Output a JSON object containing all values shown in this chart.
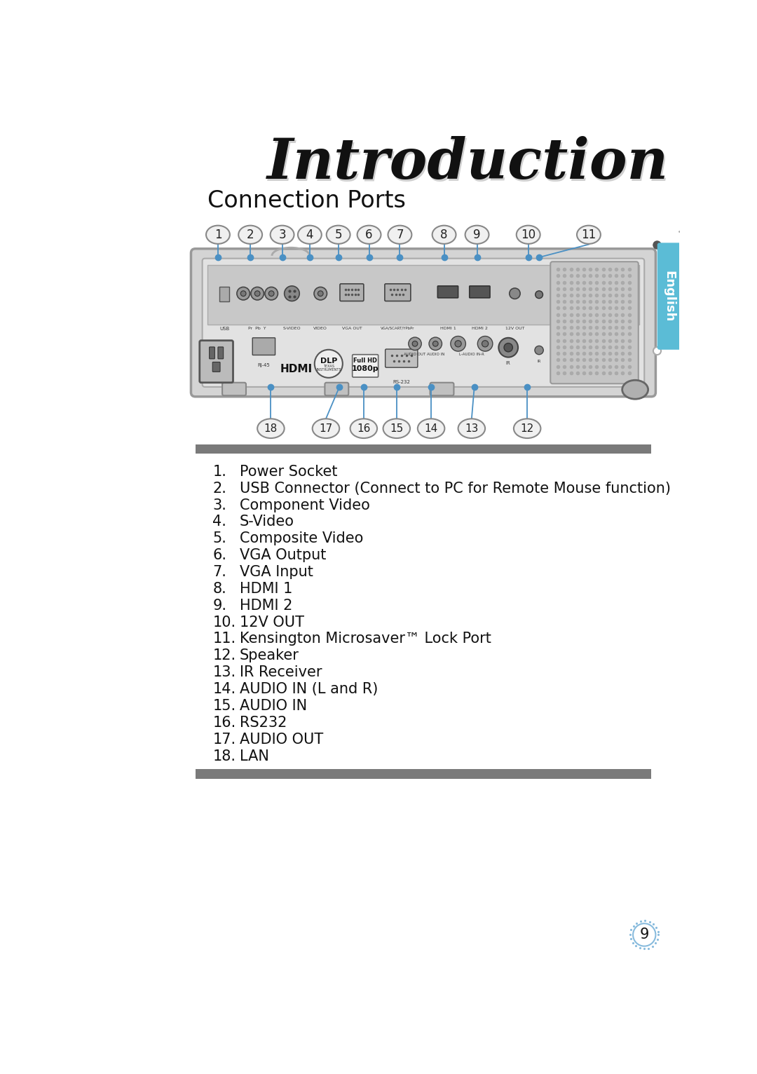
{
  "title": "Introduction",
  "section_title": "Connection Ports",
  "items": [
    [
      "1.",
      "Power Socket"
    ],
    [
      "2.",
      "USB Connector (Connect to PC for Remote Mouse function)"
    ],
    [
      "3.",
      "Component Video"
    ],
    [
      "4.",
      "S-Video"
    ],
    [
      "5.",
      "Composite Video"
    ],
    [
      "6.",
      "VGA Output"
    ],
    [
      "7.",
      "VGA Input"
    ],
    [
      "8.",
      "HDMI 1"
    ],
    [
      "9.",
      "HDMI 2"
    ],
    [
      "10.",
      "12V OUT"
    ],
    [
      "11.",
      "Kensington Microsaver™ Lock Port"
    ],
    [
      "12.",
      "Speaker"
    ],
    [
      "13.",
      "IR Receiver"
    ],
    [
      "14.",
      "AUDIO IN (L and R)"
    ],
    [
      "15.",
      "AUDIO IN"
    ],
    [
      "16.",
      "RS232"
    ],
    [
      "17.",
      "AUDIO OUT"
    ],
    [
      "18.",
      "LAN"
    ]
  ],
  "page_number": "9",
  "background_color": "#ffffff",
  "top_numbers": [
    "1",
    "2",
    "3",
    "4",
    "5",
    "6",
    "7",
    "8",
    "9",
    "10",
    "11"
  ],
  "bottom_numbers": [
    "18",
    "17",
    "16",
    "15",
    "14",
    "13",
    "12"
  ],
  "bar_color": "#7a7a7a",
  "badge_fill": "#f0f0f0",
  "badge_edge": "#888888",
  "line_color": "#4a90c4",
  "dot_color": "#4a90c4",
  "english_tab_color": "#5bbcd6",
  "english_text": "English",
  "proj_body_color": "#d8d8d8",
  "proj_edge_color": "#aaaaaa",
  "proj_inner_color": "#e8e8e8",
  "port_panel_color": "#c0c0c0",
  "port_area_color": "#b0b0b0"
}
